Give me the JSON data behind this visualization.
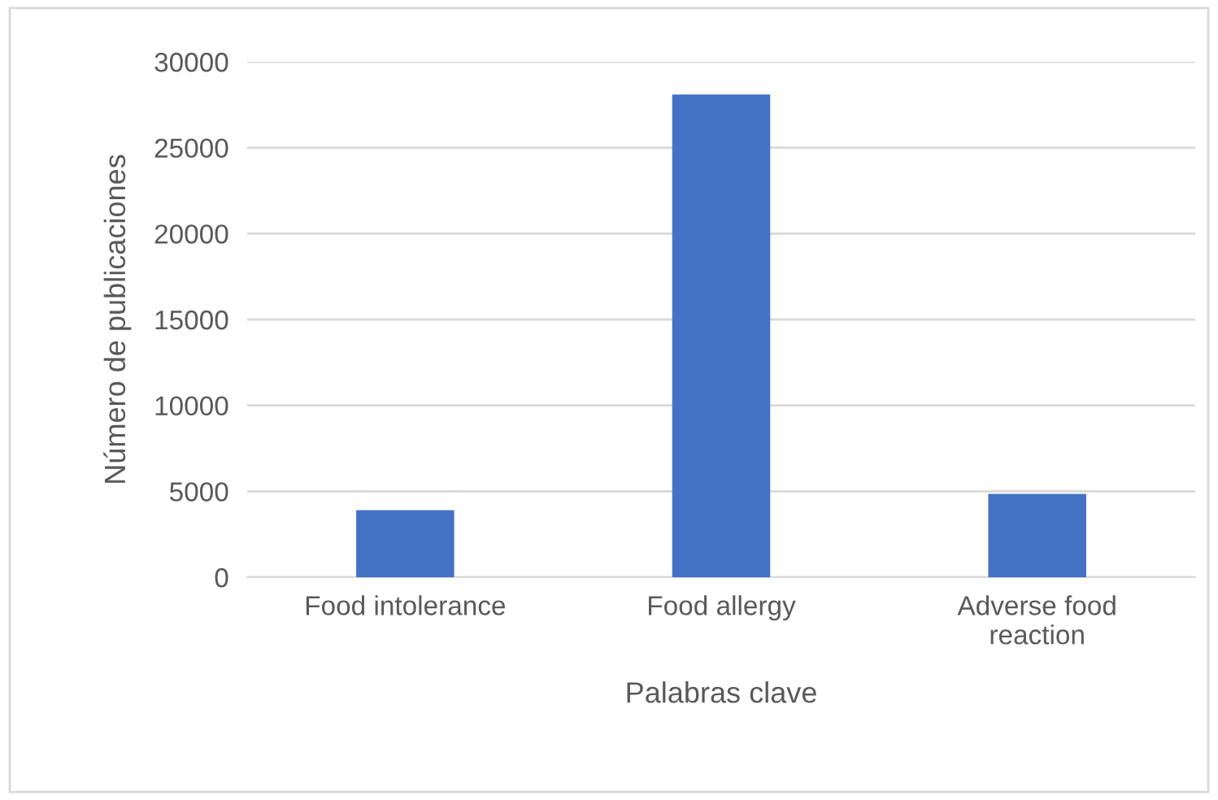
{
  "chart_data": {
    "type": "bar",
    "xlabel": "Palabras clave",
    "ylabel": "Número de publicaciones",
    "categories": [
      "Food intolerance",
      "Food allergy",
      "Adverse food\nreaction"
    ],
    "values": [
      3900,
      28100,
      4850
    ],
    "color": "#4472c4",
    "ylim": [
      0,
      30000
    ],
    "yticks": [
      0,
      5000,
      10000,
      15000,
      20000,
      25000,
      30000
    ],
    "grid": "y",
    "legend": false
  }
}
